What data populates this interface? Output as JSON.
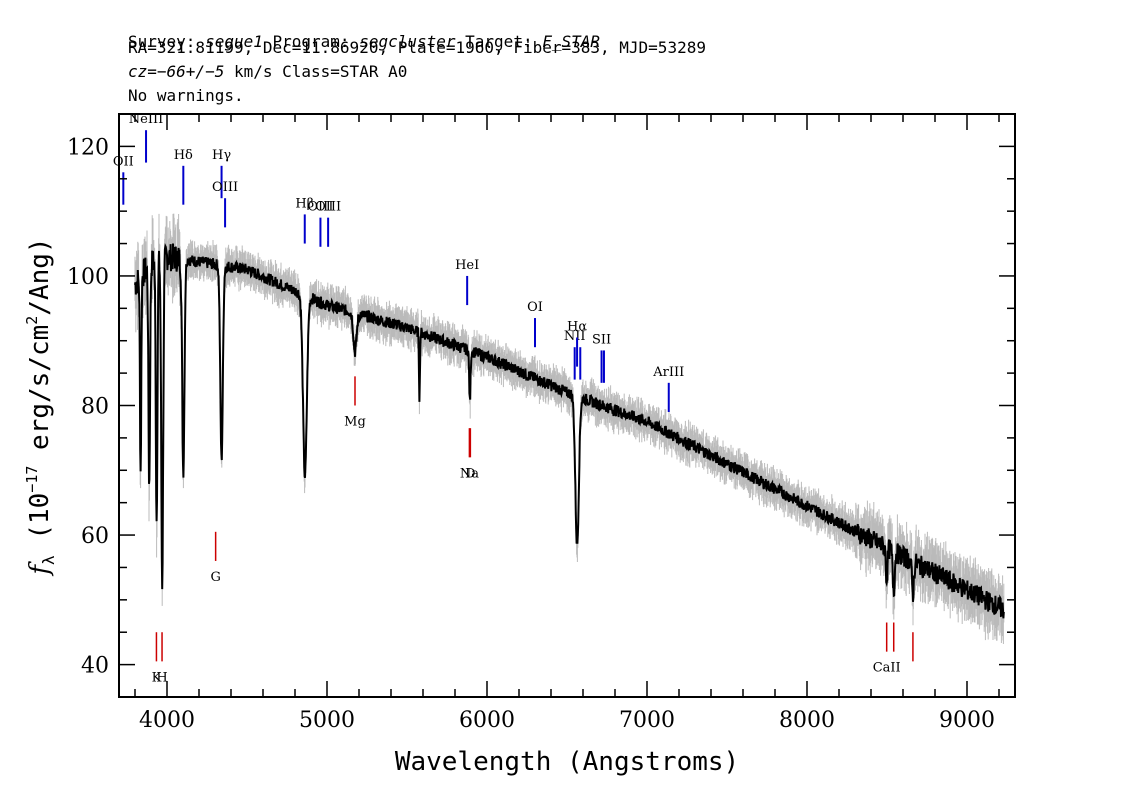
{
  "header": {
    "line1": {
      "survey_label": "Survey: ",
      "survey": "segue1",
      "program_label": " Program: ",
      "program": "segcluster",
      "target_label": " Target: ",
      "target": "F_STAR"
    },
    "line2": "RA=321.81199, Dec=11.86920, Plate=1960, Fiber=383, MJD=53289",
    "line3": {
      "cz": "cz=−66+/−5",
      "rest": " km/s Class=STAR A0"
    },
    "line4": "No warnings."
  },
  "chart_data": {
    "type": "line",
    "xlabel": "Wavelength (Angstroms)",
    "ylabel_parts": {
      "f": "f",
      "lam": "λ",
      "open": " (10",
      "exp": "−17",
      "mid": " erg/s/cm",
      "sq": "2",
      "close": "/Ang)"
    },
    "xlim": [
      3700,
      9300
    ],
    "ylim": [
      35,
      125
    ],
    "xticks": [
      4000,
      5000,
      6000,
      7000,
      8000,
      9000
    ],
    "yticks": [
      40,
      60,
      80,
      100,
      120
    ],
    "colors": {
      "flux": "#000000",
      "error": "#bbbbbb",
      "emission": "#0000cc",
      "absorption": "#cc0000"
    },
    "continuum": {
      "x": [
        3780,
        3900,
        4000,
        4500,
        5000,
        5500,
        6000,
        6500,
        7000,
        7500,
        8000,
        8500,
        9000,
        9230
      ],
      "y": [
        98,
        102,
        103,
        101,
        95.5,
        92,
        87.5,
        82,
        77.5,
        71,
        64.5,
        58,
        51.5,
        48.5
      ]
    },
    "absorption_features": [
      {
        "center": 3835,
        "width": 4,
        "depth": 30
      },
      {
        "center": 3889,
        "width": 5,
        "depth": 34
      },
      {
        "center": 3935,
        "width": 5,
        "depth": 40
      },
      {
        "center": 3970,
        "width": 6,
        "depth": 50
      },
      {
        "center": 4102,
        "width": 7,
        "depth": 33
      },
      {
        "center": 4341,
        "width": 8,
        "depth": 30
      },
      {
        "center": 4862,
        "width": 12,
        "depth": 28
      },
      {
        "center": 5175,
        "width": 10,
        "depth": 6
      },
      {
        "center": 5578,
        "width": 3,
        "depth": 10
      },
      {
        "center": 5893,
        "width": 4,
        "depth": 8
      },
      {
        "center": 6563,
        "width": 11,
        "depth": 23
      },
      {
        "center": 8498,
        "width": 5,
        "depth": 5
      },
      {
        "center": 8542,
        "width": 6,
        "depth": 6
      },
      {
        "center": 8662,
        "width": 6,
        "depth": 5
      }
    ],
    "emission_lines": [
      {
        "label": "OII",
        "x": 3727,
        "y_top": 116,
        "y_bot": 111
      },
      {
        "label": "NeIII",
        "x": 3869,
        "y_top": 122.5,
        "y_bot": 117.5
      },
      {
        "label": "Hδ",
        "x": 4102,
        "y_top": 117,
        "y_bot": 111
      },
      {
        "label": "Hγ",
        "x": 4341,
        "y_top": 117,
        "y_bot": 112
      },
      {
        "label": "OIII",
        "x": 4363,
        "y_top": 112,
        "y_bot": 107.5
      },
      {
        "label": "Hβ",
        "x": 4861,
        "y_top": 109.5,
        "y_bot": 105
      },
      {
        "label": "OIII",
        "x": 4959,
        "y_top": 109,
        "y_bot": 104.5
      },
      {
        "label": "OIII",
        "x": 5007,
        "y_top": 109,
        "y_bot": 104.5
      },
      {
        "label": "HeI",
        "x": 5876,
        "y_top": 100,
        "y_bot": 95.5
      },
      {
        "label": "OI",
        "x": 6300,
        "y_top": 93.5,
        "y_bot": 89
      },
      {
        "label": "NII",
        "x": 6548,
        "y_top": 89,
        "y_bot": 84
      },
      {
        "label": "Hα",
        "x": 6563,
        "y_top": 90.5,
        "y_bot": 86
      },
      {
        "label": "NII",
        "x": 6583,
        "y_top": 89,
        "y_bot": 84
      },
      {
        "label": "SII",
        "x": 6716,
        "y_top": 88.5,
        "y_bot": 83.5
      },
      {
        "label": "SII",
        "x": 6731,
        "y_top": 88.5,
        "y_bot": 83.5
      },
      {
        "label": "ArIII",
        "x": 7136,
        "y_top": 83.5,
        "y_bot": 79
      }
    ],
    "absorption_lines": [
      {
        "label": "K",
        "x": 3934,
        "y_top": 45,
        "y_bot": 40.5
      },
      {
        "label": "H",
        "x": 3969,
        "y_top": 45,
        "y_bot": 40.5
      },
      {
        "label": "G",
        "x": 4304,
        "y_top": 60.5,
        "y_bot": 56
      },
      {
        "label": "Mg",
        "x": 5175,
        "y_top": 84.5,
        "y_bot": 80
      },
      {
        "label": "Na",
        "x": 5890,
        "y_top": 76.5,
        "y_bot": 72
      },
      {
        "label": "D",
        "x": 5896,
        "y_top": 76.5,
        "y_bot": 72
      },
      {
        "label": "CaII",
        "x": 8498,
        "y_top": 46.5,
        "y_bot": 42
      },
      {
        "label": "CaII",
        "x": 8542,
        "y_top": 46.5,
        "y_bot": 42
      },
      {
        "label": "CaII",
        "x": 8662,
        "y_top": 45,
        "y_bot": 40.5
      }
    ]
  }
}
